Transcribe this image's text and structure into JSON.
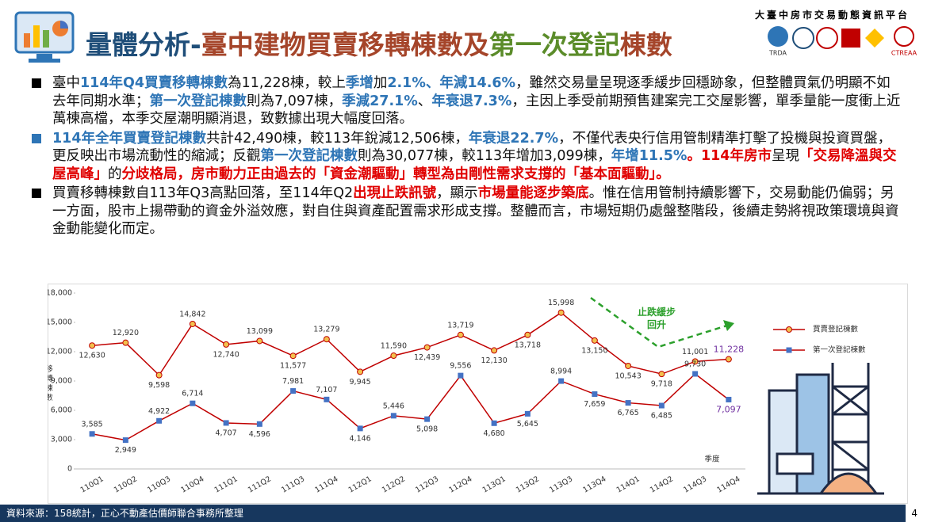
{
  "header": {
    "title": [
      {
        "text": "量體分析-",
        "color": "#1f4e79"
      },
      {
        "text": "臺中建物買賣移轉棟數及",
        "color": "#a5452a"
      },
      {
        "text": "第一次登記",
        "color": "#5b8c2a"
      },
      {
        "text": "棟數",
        "color": "#a5452a"
      }
    ],
    "brand": "大臺中房市交易動態資訊平台",
    "logos": [
      "TRDA",
      "CTREAA"
    ]
  },
  "bullets": [
    {
      "marker_color": "#000000",
      "segments": [
        {
          "text": "臺中",
          "style": "normal"
        },
        {
          "text": "114年Q4買賣移轉棟數",
          "style": "blue"
        },
        {
          "text": "為11,228棟，較上",
          "style": "normal"
        },
        {
          "text": "季增",
          "style": "blue"
        },
        {
          "text": "加",
          "style": "normal"
        },
        {
          "text": "2.1%、年減14.6%",
          "style": "blue"
        },
        {
          "text": "，雖然交易量呈現逐季緩步回穩跡象，但整體買氣仍明顯不如去年同期水準；",
          "style": "normal"
        },
        {
          "text": "第一次登記棟數",
          "style": "blue"
        },
        {
          "text": "則為7,097棟，",
          "style": "normal"
        },
        {
          "text": "季減27.1%",
          "style": "blue"
        },
        {
          "text": "、",
          "style": "normal"
        },
        {
          "text": "年衰退7.3%",
          "style": "blue"
        },
        {
          "text": "，主因上季受前期預售建案完工交屋影響，單季量能一度衝上近萬棟高檔，本季交屋潮明顯消退，致數據出現大幅度回落。",
          "style": "normal"
        }
      ]
    },
    {
      "marker_color": "#2e75b6",
      "segments": [
        {
          "text": "114年全年買賣登記棟數",
          "style": "blue"
        },
        {
          "text": "共計42,490棟，較113年銳減12,506棟，",
          "style": "normal"
        },
        {
          "text": "年衰退22.7%",
          "style": "blue"
        },
        {
          "text": "，不僅代表央行信用管制精準打擊了投機與投資買盤，更反映出市場流動性的縮減；反觀",
          "style": "normal"
        },
        {
          "text": "第一次登記棟數",
          "style": "blue"
        },
        {
          "text": "則為30,077棟，較113年增加3,099棟，",
          "style": "normal"
        },
        {
          "text": "年增11.5%",
          "style": "blue"
        },
        {
          "text": "。114年房市",
          "style": "red"
        },
        {
          "text": "呈現",
          "style": "normal"
        },
        {
          "text": "「交易降溫與交屋高峰」",
          "style": "red"
        },
        {
          "text": "的",
          "style": "normal"
        },
        {
          "text": "分歧格局，房市動力正由過去的「資金潮驅動」轉型為由剛性需求支撐的「基本面驅動」。",
          "style": "red"
        }
      ]
    },
    {
      "marker_color": "#000000",
      "segments": [
        {
          "text": "買賣移轉棟數自113年Q3高點回落，至114年Q2",
          "style": "normal"
        },
        {
          "text": "出現止跌訊號",
          "style": "red"
        },
        {
          "text": "，顯示",
          "style": "normal"
        },
        {
          "text": "市場量能逐步築底",
          "style": "red"
        },
        {
          "text": "。惟在信用管制持續影響下，交易動能仍偏弱；另一方面，股市上揚帶動的資金外溢效應，對自住與資產配置需求形成支撐。整體而言，市場短期仍處盤整階段，後續走勢將視政策環境與資金動能變化而定。",
          "style": "normal"
        }
      ]
    }
  ],
  "chart_data": {
    "type": "line",
    "y_label": "移轉棟數",
    "x_label": "季度",
    "categories": [
      "110Q1",
      "110Q2",
      "110Q3",
      "110Q4",
      "111Q1",
      "111Q2",
      "111Q3",
      "111Q4",
      "112Q1",
      "112Q2",
      "112Q3",
      "112Q4",
      "113Q1",
      "113Q2",
      "113Q3",
      "113Q4",
      "114Q1",
      "114Q2",
      "114Q3",
      "114Q4"
    ],
    "series": [
      {
        "name": "買賣登記棟數",
        "color": "#c00000",
        "marker": "circle",
        "marker_color": "#f2c14e",
        "values": [
          12630,
          12920,
          9598,
          14842,
          12740,
          13099,
          11577,
          13279,
          9945,
          11590,
          12439,
          13719,
          12130,
          13718,
          15998,
          13150,
          10543,
          9718,
          11001,
          11228
        ],
        "value_labels": [
          "12,630",
          "12,920",
          "9,598",
          "14,842",
          "12,740",
          "13,099",
          "11,577",
          "13,279",
          "9,945",
          "11,590",
          "12,439",
          "13,719",
          "12,130",
          "13,718",
          "15,998",
          "13,150",
          "10,543",
          "9,718",
          "11,001",
          "11,228"
        ]
      },
      {
        "name": "第一次登記棟數",
        "color": "#c00000",
        "marker": "square",
        "marker_color": "#4472c4",
        "values": [
          3585,
          2949,
          4922,
          6714,
          4707,
          4596,
          7981,
          7107,
          4146,
          5446,
          5098,
          9556,
          4680,
          5645,
          8994,
          7659,
          6765,
          6485,
          9730,
          7097
        ],
        "value_labels": [
          "3,585",
          "2,949",
          "4,922",
          "6,714",
          "4,707",
          "4,596",
          "7,981",
          "7,107",
          "4,146",
          "5,446",
          "5,098",
          "9,556",
          "4,680",
          "5,645",
          "8,994",
          "7,659",
          "6,765",
          "6,485",
          "9,730",
          "7,097"
        ]
      }
    ],
    "last_label_color": "#7030a0",
    "ylim": [
      0,
      18000
    ],
    "yticks": [
      0,
      {
        "value": 3000,
        "label": "3,000"
      },
      {
        "value": 6000,
        "label": "6,000"
      },
      {
        "value": 9000,
        "label": "9,000"
      },
      {
        "value": 12000,
        "label": "12,000"
      },
      {
        "value": 15000,
        "label": "15,000"
      },
      {
        "value": 18000,
        "label": "18,000"
      }
    ],
    "grid": false,
    "legend": "right",
    "annotation": "止跌緩步回升"
  },
  "footer": {
    "source": "資料來源：158統計，正心不動產估價師聯合事務所整理",
    "page": "4"
  }
}
